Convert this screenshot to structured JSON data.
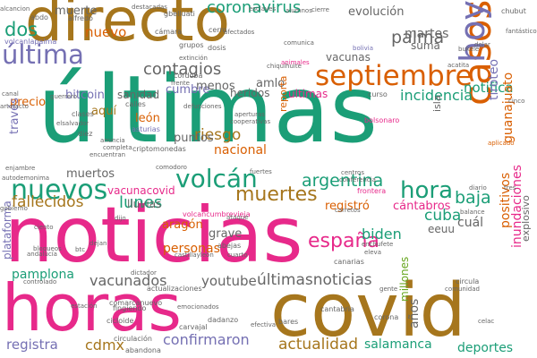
{
  "palette": {
    "teal": "#1b9e77",
    "orange": "#d95f02",
    "purple": "#7570b3",
    "magenta": "#e7298a",
    "green": "#66a61e",
    "gold": "#a6761d",
    "grey": "#666666"
  },
  "words": [
    {
      "id": "ultimas",
      "text": "últimas",
      "color": "teal"
    },
    {
      "id": "noticias",
      "text": "noticias",
      "color": "magenta"
    },
    {
      "id": "directo",
      "text": "directo",
      "color": "gold"
    },
    {
      "id": "covid",
      "text": "covid",
      "color": "gold"
    },
    {
      "id": "horas",
      "text": "horas",
      "color": "magenta"
    },
    {
      "id": "septiembre",
      "text": "septiembre",
      "color": "orange"
    },
    {
      "id": "casos",
      "text": "casos",
      "color": "orange"
    },
    {
      "id": "hoy",
      "text": "hoy",
      "color": "purple"
    },
    {
      "id": "ultima",
      "text": "última",
      "color": "purple"
    },
    {
      "id": "nuevos",
      "text": "nuevos",
      "color": "teal"
    },
    {
      "id": "volcan",
      "text": "volcán",
      "color": "teal"
    },
    {
      "id": "hora",
      "text": "hora",
      "color": "teal"
    },
    {
      "id": "muertes",
      "text": "muertes",
      "color": "gold"
    },
    {
      "id": "coronavirus",
      "text": "coronavirus",
      "color": "teal"
    },
    {
      "id": "contagios",
      "text": "contagios",
      "color": "grey"
    },
    {
      "id": "palma",
      "text": "palma",
      "color": "grey"
    },
    {
      "id": "dos",
      "text": "dos",
      "color": "teal"
    },
    {
      "id": "nuevo",
      "text": "nuevo",
      "color": "orange"
    },
    {
      "id": "argentina",
      "text": "argentina",
      "color": "teal"
    },
    {
      "id": "espana",
      "text": "españa",
      "color": "magenta"
    },
    {
      "id": "ultimasnoticias",
      "text": "últimasnoticias",
      "color": "grey"
    },
    {
      "id": "actualidad",
      "text": "actualidad",
      "color": "gold"
    },
    {
      "id": "fallecidos",
      "text": "fallecidos",
      "color": "gold"
    },
    {
      "id": "lunes",
      "text": "lunes",
      "color": "teal"
    },
    {
      "id": "baja",
      "text": "baja",
      "color": "teal"
    },
    {
      "id": "cuba",
      "text": "cuba",
      "color": "teal"
    },
    {
      "id": "riesgo",
      "text": "riesgo",
      "color": "gold"
    },
    {
      "id": "incidencia",
      "text": "incidencia",
      "color": "teal"
    },
    {
      "id": "notifica",
      "text": "notifica",
      "color": "teal"
    },
    {
      "id": "martes",
      "text": "martes",
      "color": "grey"
    },
    {
      "id": "vacunados",
      "text": "vacunados",
      "color": "grey"
    },
    {
      "id": "youtube",
      "text": "youtube",
      "color": "grey"
    },
    {
      "id": "personas",
      "text": "personas",
      "color": "orange"
    },
    {
      "id": "biden",
      "text": "biden",
      "color": "teal"
    },
    {
      "id": "confirmaron",
      "text": "confirmaron",
      "color": "purple"
    },
    {
      "id": "cdmx",
      "text": "cdmx",
      "color": "gold"
    },
    {
      "id": "registra",
      "text": "registra",
      "color": "purple"
    },
    {
      "id": "salamanca",
      "text": "salamanca",
      "color": "teal"
    },
    {
      "id": "deportes",
      "text": "deportes",
      "color": "teal"
    },
    {
      "id": "muerte",
      "text": "muerte",
      "color": "grey"
    },
    {
      "id": "evolucion",
      "text": "evolución",
      "color": "grey"
    },
    {
      "id": "vacunas",
      "text": "vacunas",
      "color": "grey"
    },
    {
      "id": "precio",
      "text": "precio",
      "color": "orange"
    },
    {
      "id": "sanidad",
      "text": "sanidad",
      "color": "grey"
    },
    {
      "id": "bitcoin",
      "text": "bitcoin",
      "color": "purple"
    },
    {
      "id": "cumbre",
      "text": "cumbre",
      "color": "purple"
    },
    {
      "id": "menos",
      "text": "menos",
      "color": "grey"
    },
    {
      "id": "heridos",
      "text": "heridos",
      "color": "grey"
    },
    {
      "id": "ultimas2",
      "text": "ultimas",
      "color": "magenta"
    },
    {
      "id": "amlo",
      "text": "amlo",
      "color": "grey"
    },
    {
      "id": "leon",
      "text": "león",
      "color": "orange"
    },
    {
      "id": "aqui",
      "text": "aquí",
      "color": "gold"
    },
    {
      "id": "puntos",
      "text": "puntos",
      "color": "grey"
    },
    {
      "id": "nacional",
      "text": "nacional",
      "color": "orange"
    },
    {
      "id": "muertos",
      "text": "muertos",
      "color": "grey"
    },
    {
      "id": "vacunacovid",
      "text": "vacunacovid",
      "color": "magenta"
    },
    {
      "id": "lluvias",
      "text": "lluvias",
      "color": "grey"
    },
    {
      "id": "aragon",
      "text": "aragón",
      "color": "orange"
    },
    {
      "id": "registro",
      "text": "registró",
      "color": "orange"
    },
    {
      "id": "cantabros",
      "text": "cántabros",
      "color": "magenta"
    },
    {
      "id": "grave",
      "text": "grave",
      "color": "grey"
    },
    {
      "id": "pamplona",
      "text": "pamplona",
      "color": "teal"
    },
    {
      "id": "eeuu",
      "text": "eeuu",
      "color": "grey"
    },
    {
      "id": "cual",
      "text": "cuál",
      "color": "grey"
    },
    {
      "id": "traves",
      "text": "través",
      "color": "purple"
    },
    {
      "id": "plataforma",
      "text": "plataforma",
      "color": "purple"
    },
    {
      "id": "suma",
      "text": "suma",
      "color": "grey"
    },
    {
      "id": "isla",
      "text": "isla",
      "color": "grey"
    },
    {
      "id": "reporta",
      "text": "reporta",
      "color": "orange"
    },
    {
      "id": "guanajuato",
      "text": "guanajuato",
      "color": "orange"
    },
    {
      "id": "tiroteo",
      "text": "tiroteo",
      "color": "purple"
    },
    {
      "id": "explosivo",
      "text": "explosivo",
      "color": "grey"
    },
    {
      "id": "inundaciones",
      "text": "inundaciones",
      "color": "magenta"
    },
    {
      "id": "positivos",
      "text": "positivos",
      "color": "orange"
    },
    {
      "id": "millones",
      "text": "millones",
      "color": "green"
    },
    {
      "id": "anos",
      "text": "años",
      "color": "grey"
    },
    {
      "id": "alfredo",
      "text": "alfredo",
      "color": "grey"
    },
    {
      "id": "gbelluati",
      "text": "gbelluati",
      "color": "grey"
    },
    {
      "id": "abdo",
      "text": "abdo",
      "color": "grey"
    },
    {
      "id": "bolivia",
      "text": "bolivia",
      "color": "purple"
    },
    {
      "id": "volcanlapalma",
      "text": "volcanlapalma",
      "color": "purple"
    },
    {
      "id": "canarias",
      "text": "canarias",
      "color": "grey"
    },
    {
      "id": "camara",
      "text": "cámara",
      "color": "grey"
    },
    {
      "id": "dosis",
      "text": "dosis",
      "color": "grey"
    },
    {
      "id": "cerro",
      "text": "cerro",
      "color": "grey"
    },
    {
      "id": "grupos",
      "text": "grupos",
      "color": "grey"
    },
    {
      "id": "chiquihuite",
      "text": "chiquihuite",
      "color": "grey"
    },
    {
      "id": "animales",
      "text": "animales",
      "color": "magenta"
    },
    {
      "id": "canal",
      "text": "canal",
      "color": "grey"
    },
    {
      "id": "cordoba",
      "text": "córdoba",
      "color": "grey"
    },
    {
      "id": "frente",
      "text": "frente",
      "color": "grey"
    },
    {
      "id": "curso",
      "text": "curso",
      "color": "grey"
    },
    {
      "id": "bolsonaro",
      "text": "bolsonaro",
      "color": "magenta"
    },
    {
      "id": "aplicado",
      "text": "aplicado",
      "color": "orange"
    },
    {
      "id": "clases",
      "text": "clases",
      "color": "grey"
    },
    {
      "id": "diez",
      "text": "diez",
      "color": "grey"
    },
    {
      "id": "elsalvador",
      "text": "elsalvador",
      "color": "grey"
    },
    {
      "id": "guerrero",
      "text": "guerrero",
      "color": "grey"
    },
    {
      "id": "calles",
      "text": "calles",
      "color": "grey"
    },
    {
      "id": "aperturas",
      "text": "aperturas",
      "color": "grey"
    },
    {
      "id": "cooperativas",
      "text": "cooperativas",
      "color": "grey"
    },
    {
      "id": "asturias",
      "text": "asturias",
      "color": "purple"
    },
    {
      "id": "anuncia",
      "text": "anuncia",
      "color": "grey"
    },
    {
      "id": "completa",
      "text": "completa",
      "color": "grey"
    },
    {
      "id": "encuentran",
      "text": "encuentran",
      "color": "grey"
    },
    {
      "id": "criptomonedas",
      "text": "criptomonedas",
      "color": "grey"
    },
    {
      "id": "enjambre",
      "text": "enjambre",
      "color": "grey"
    },
    {
      "id": "autodemonima",
      "text": "autodemonima",
      "color": "grey"
    },
    {
      "id": "comodoro",
      "text": "comodoro",
      "color": "grey"
    },
    {
      "id": "fuertes",
      "text": "fuertes",
      "color": "grey"
    },
    {
      "id": "centros",
      "text": "centros",
      "color": "grey"
    },
    {
      "id": "conferencia",
      "text": "conferencia",
      "color": "grey"
    },
    {
      "id": "frontera",
      "text": "frontera",
      "color": "magenta"
    },
    {
      "id": "diario",
      "text": "diario",
      "color": "grey"
    },
    {
      "id": "tres",
      "text": "tres",
      "color": "grey"
    },
    {
      "id": "carretos",
      "text": "carretos",
      "color": "grey"
    },
    {
      "id": "balance",
      "text": "balance",
      "color": "grey"
    },
    {
      "id": "gobierno",
      "text": "gobierno",
      "color": "grey"
    },
    {
      "id": "volcancumbrevieja",
      "text": "volcancumbrevieja",
      "color": "magenta"
    },
    {
      "id": "ataque",
      "text": "ataque",
      "color": "grey"
    },
    {
      "id": "dijo",
      "text": "dijo",
      "color": "grey"
    },
    {
      "id": "ciento",
      "text": "ciento",
      "color": "grey"
    },
    {
      "id": "dejan",
      "text": "dejan",
      "color": "grey"
    },
    {
      "id": "btc",
      "text": "btc",
      "color": "grey"
    },
    {
      "id": "castillayleon",
      "text": "castillayleón",
      "color": "grey"
    },
    {
      "id": "abejas",
      "text": "abejas",
      "color": "grey"
    },
    {
      "id": "cuarto",
      "text": "cuarto",
      "color": "grey"
    },
    {
      "id": "enchufete",
      "text": "enchufete",
      "color": "grey"
    },
    {
      "id": "eleva",
      "text": "eleva",
      "color": "grey"
    },
    {
      "id": "andalucia",
      "text": "andalucía",
      "color": "grey"
    },
    {
      "id": "bloqueos",
      "text": "bloqueos",
      "color": "grey"
    },
    {
      "id": "dictador",
      "text": "dictador",
      "color": "grey"
    },
    {
      "id": "actualizaciones",
      "text": "actualizaciones",
      "color": "grey"
    },
    {
      "id": "controlado",
      "text": "controlado",
      "color": "grey"
    },
    {
      "id": "gente",
      "text": "gente",
      "color": "grey"
    },
    {
      "id": "circula",
      "text": "circula",
      "color": "grey"
    },
    {
      "id": "comunidad",
      "text": "comunidad",
      "color": "grey"
    },
    {
      "id": "estacion",
      "text": "estación",
      "color": "grey"
    },
    {
      "id": "comarcanuevo",
      "text": "comarcanuevo",
      "color": "grey"
    },
    {
      "id": "fingiendo",
      "text": "fingiendo",
      "color": "grey"
    },
    {
      "id": "cantabria",
      "text": "cantabria",
      "color": "grey"
    },
    {
      "id": "cicloide",
      "text": "cicloide",
      "color": "grey"
    },
    {
      "id": "dadanzo",
      "text": "dadanzo",
      "color": "grey"
    },
    {
      "id": "carvajal",
      "text": "carvajal",
      "color": "grey"
    },
    {
      "id": "circulacion",
      "text": "circulación",
      "color": "grey"
    },
    {
      "id": "abandona",
      "text": "abandona",
      "color": "grey"
    },
    {
      "id": "bares",
      "text": "bares",
      "color": "grey"
    },
    {
      "id": "corona",
      "text": "corona",
      "color": "grey"
    },
    {
      "id": "celac",
      "text": "celac",
      "color": "grey"
    },
    {
      "id": "emocionados",
      "text": "emocionados",
      "color": "grey"
    },
    {
      "id": "efectiva",
      "text": "efectiva",
      "color": "grey"
    },
    {
      "id": "alumnos",
      "text": "alumnos",
      "color": "grey"
    },
    {
      "id": "cierre",
      "text": "cierre",
      "color": "grey"
    },
    {
      "id": "chubut",
      "text": "chubut",
      "color": "grey"
    },
    {
      "id": "fantastico",
      "text": "fantástico",
      "color": "grey"
    },
    {
      "id": "dolar",
      "text": "dolar",
      "color": "grey"
    },
    {
      "id": "bukele",
      "text": "bukele",
      "color": "grey"
    },
    {
      "id": "cinco",
      "text": "cinco",
      "color": "grey"
    },
    {
      "id": "acatita",
      "text": "acatita",
      "color": "grey"
    },
    {
      "id": "artefacto",
      "text": "artefacto",
      "color": "grey"
    },
    {
      "id": "defunciones",
      "text": "defunciones",
      "color": "grey"
    },
    {
      "id": "alcancion",
      "text": "alcancion",
      "color": "grey"
    },
    {
      "id": "destacadas",
      "text": "destacadas",
      "color": "grey"
    },
    {
      "id": "afectados",
      "text": "afectados",
      "color": "grey"
    },
    {
      "id": "comunica",
      "text": "comunica",
      "color": "grey"
    },
    {
      "id": "extincion",
      "text": "extinción",
      "color": "grey"
    },
    {
      "id": "esclaves",
      "text": "esclaves",
      "color": "grey"
    }
  ]
}
